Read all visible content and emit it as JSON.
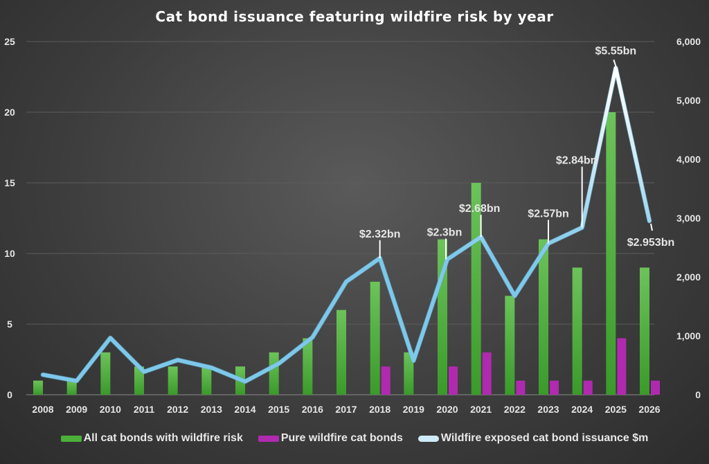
{
  "chart_data": {
    "type": "bar",
    "title": "Cat bond issuance featuring wildfire risk by year",
    "categories": [
      "2008",
      "2009",
      "2010",
      "2011",
      "2012",
      "2013",
      "2014",
      "2015",
      "2016",
      "2017",
      "2018",
      "2019",
      "2020",
      "2021",
      "2022",
      "2023",
      "2024",
      "2025",
      "2026"
    ],
    "y_left": {
      "range": [
        0,
        25
      ],
      "ticks": [
        "0",
        "5",
        "10",
        "15",
        "20",
        "25"
      ],
      "grid": true
    },
    "y_right": {
      "range": [
        0,
        6000
      ],
      "ticks": [
        "0",
        "1,000",
        "2,000",
        "3,000",
        "4,000",
        "5,000",
        "6,000"
      ]
    },
    "series": [
      {
        "name": "All cat bonds with wildfire risk",
        "type": "bar",
        "axis": "left",
        "color": "#4caf3a",
        "values": [
          1,
          1,
          3,
          2,
          2,
          2,
          2,
          3,
          4,
          6,
          8,
          3,
          11,
          15,
          7,
          11,
          9,
          20,
          9
        ]
      },
      {
        "name": "Pure wildfire cat bonds",
        "type": "bar",
        "axis": "left",
        "color": "#b02ab0",
        "values": [
          0,
          0,
          0,
          0,
          0,
          0,
          0,
          0,
          0,
          0,
          2,
          0,
          2,
          3,
          1,
          1,
          1,
          4,
          1
        ]
      },
      {
        "name": "Wildfire exposed cat bond issuance $m",
        "type": "line",
        "axis": "right",
        "color": "#7ec8ea",
        "values": [
          340,
          235,
          965,
          390,
          590,
          460,
          225,
          530,
          975,
          1920,
          2320,
          580,
          2300,
          2680,
          1680,
          2570,
          2840,
          5550,
          2953
        ]
      }
    ],
    "annotations": [
      {
        "year": "2018",
        "text": "$2.32bn"
      },
      {
        "year": "2020",
        "text": "$2.3bn"
      },
      {
        "year": "2021",
        "text": "$2.68bn"
      },
      {
        "year": "2023",
        "text": "$2.57bn"
      },
      {
        "year": "2024",
        "text": "$2.84bn"
      },
      {
        "year": "2025",
        "text": "$5.55bn"
      },
      {
        "year": "2026",
        "text": "$2.953bn"
      }
    ],
    "legend_position": "bottom"
  }
}
